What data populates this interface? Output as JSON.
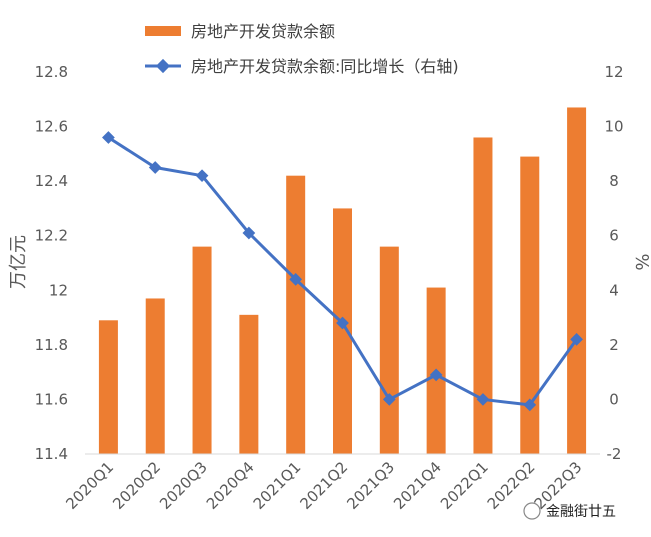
{
  "chart_data": {
    "type": "bar+line",
    "categories": [
      "2020Q1",
      "2020Q2",
      "2020Q3",
      "2020Q4",
      "2021Q1",
      "2021Q2",
      "2021Q3",
      "2021Q4",
      "2022Q1",
      "2022Q2",
      "2022Q3"
    ],
    "series": [
      {
        "name": "房地产开发贷款余额",
        "type": "bar",
        "axis": "left",
        "color": "#ED7D31",
        "values": [
          11.89,
          11.97,
          12.16,
          11.91,
          12.42,
          12.3,
          12.16,
          12.01,
          12.56,
          12.49,
          12.67
        ]
      },
      {
        "name": "房地产开发贷款余额:同比增长（右轴)",
        "type": "line",
        "axis": "right",
        "color": "#4472C4",
        "values": [
          9.6,
          8.5,
          8.2,
          6.1,
          4.4,
          2.8,
          0.0,
          0.9,
          0.0,
          -0.2,
          2.2
        ]
      }
    ],
    "y_left": {
      "label": "万亿元",
      "ylim": [
        11.4,
        12.8
      ],
      "ticks": [
        "11.4",
        "11.6",
        "11.8",
        "12",
        "12.2",
        "12.4",
        "12.6",
        "12.8"
      ]
    },
    "y_right": {
      "label": "%",
      "ylim": [
        -2,
        12
      ],
      "ticks": [
        "-2",
        "0",
        "2",
        "4",
        "6",
        "8",
        "10",
        "12"
      ]
    },
    "legend_position": "top",
    "grid": false
  },
  "watermark": "金融街廿五"
}
